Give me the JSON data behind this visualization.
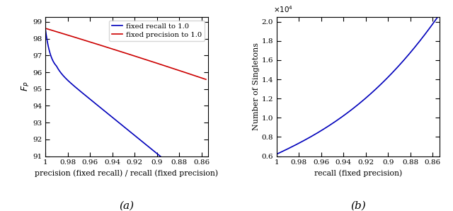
{
  "left": {
    "xlabel": "precision (fixed recall) / recall (fixed precision)",
    "ylabel": "$F_P$",
    "xlim": [
      1.0,
      0.854
    ],
    "ylim": [
      91,
      99.3
    ],
    "xticks": [
      1.0,
      0.98,
      0.96,
      0.94,
      0.92,
      0.9,
      0.88,
      0.86
    ],
    "xtick_labels": [
      "1",
      "0.98",
      "0.96",
      "0.94",
      "0.92",
      "0.9",
      "0.88",
      "0.86"
    ],
    "yticks": [
      91,
      92,
      93,
      94,
      95,
      96,
      97,
      98,
      99
    ],
    "legend_entries": [
      "fixed recall to 1.0",
      "fixed precision to 1.0"
    ],
    "line_colors": [
      "#0000bb",
      "#cc0000"
    ],
    "label": "(a)"
  },
  "right": {
    "xlabel": "recall (fixed precision)",
    "ylabel": "Number of Singletons",
    "xlim": [
      1.0,
      0.854
    ],
    "ylim": [
      6000,
      20500
    ],
    "xticks": [
      1.0,
      0.98,
      0.96,
      0.94,
      0.92,
      0.9,
      0.88,
      0.86
    ],
    "xtick_labels": [
      "1",
      "0.98",
      "0.96",
      "0.94",
      "0.92",
      "0.9",
      "0.88",
      "0.86"
    ],
    "ytick_values": [
      0.6,
      0.8,
      1.0,
      1.2,
      1.4,
      1.6,
      1.8,
      2.0
    ],
    "line_color": "#0000bb",
    "label": "(b)"
  }
}
